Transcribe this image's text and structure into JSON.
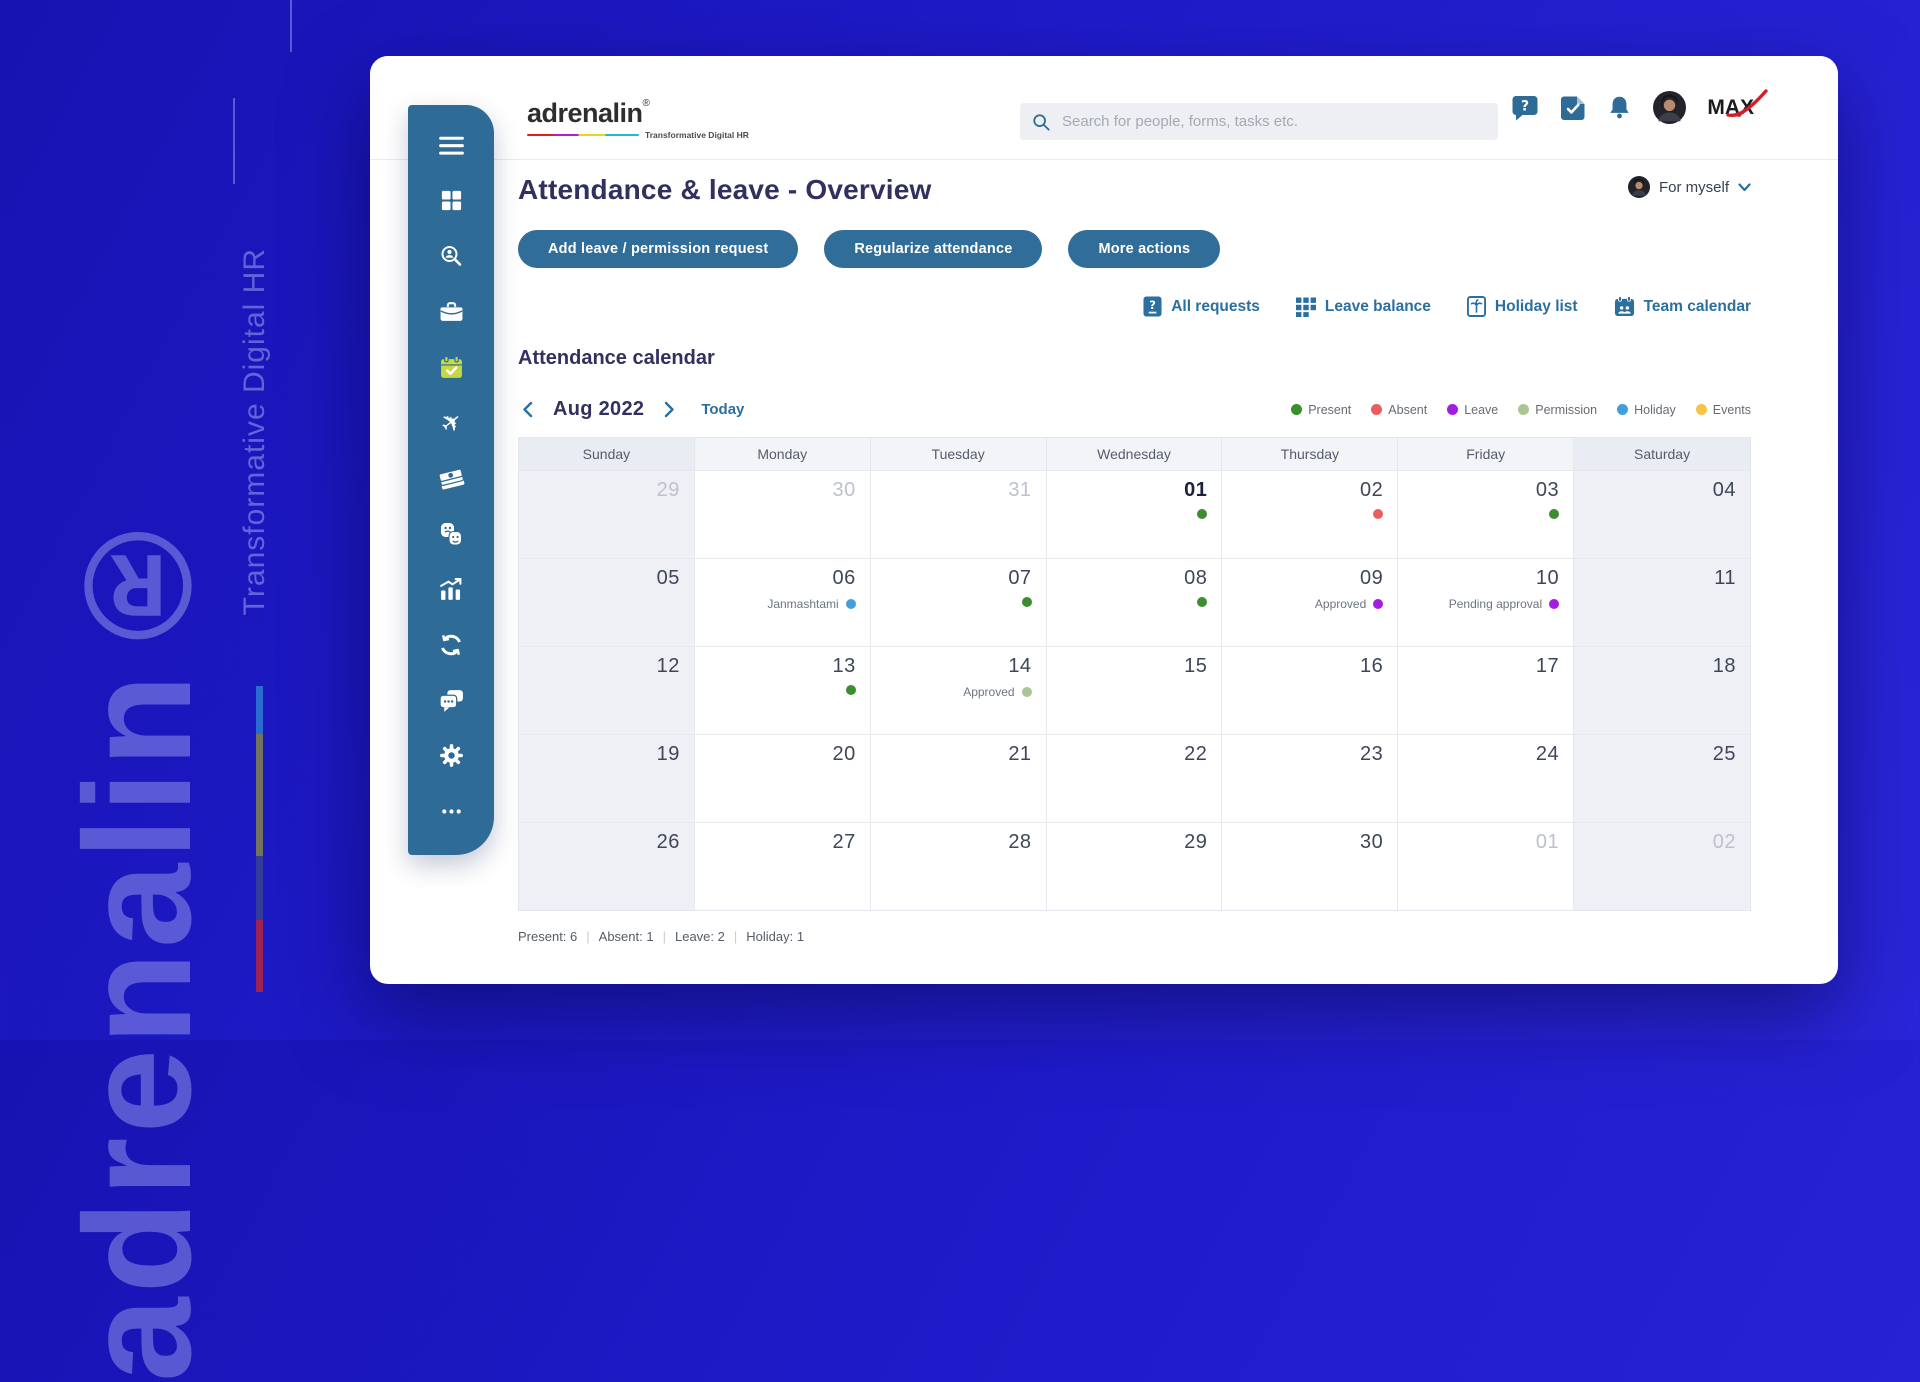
{
  "background": {
    "watermark": "adrenalin®",
    "tagline": "Transformative Digital HR"
  },
  "header": {
    "logo_text": "adrenalin",
    "logo_reg": "®",
    "logo_tagline": "Transformative Digital HR",
    "search_placeholder": "Search for people, forms, tasks etc.",
    "icons": [
      {
        "icon": "help"
      },
      {
        "icon": "tasks"
      },
      {
        "icon": "notifications"
      },
      {
        "icon": "avatar"
      }
    ],
    "brand_badge": "MAX"
  },
  "context_switcher": {
    "label": "For myself"
  },
  "page_title": "Attendance & leave - Overview",
  "action_buttons": [
    {
      "label": "Add leave / permission request"
    },
    {
      "label": "Regularize attendance"
    },
    {
      "label": "More actions"
    }
  ],
  "quick_links": [
    {
      "icon": "requests",
      "label": "All requests"
    },
    {
      "icon": "grid",
      "label": "Leave balance"
    },
    {
      "icon": "holiday",
      "label": "Holiday list"
    },
    {
      "icon": "team-calendar",
      "label": "Team calendar"
    }
  ],
  "sidebar": {
    "items": [
      {
        "icon": "menu"
      },
      {
        "icon": "dashboard"
      },
      {
        "icon": "people-search"
      },
      {
        "icon": "briefcase"
      },
      {
        "icon": "attendance",
        "active": true
      },
      {
        "icon": "travel"
      },
      {
        "icon": "payroll"
      },
      {
        "icon": "engagement"
      },
      {
        "icon": "analytics"
      },
      {
        "icon": "sync"
      },
      {
        "icon": "chat"
      },
      {
        "icon": "settings"
      },
      {
        "icon": "more"
      }
    ]
  },
  "calendar": {
    "heading": "Attendance calendar",
    "month_label": "Aug 2022",
    "today_label": "Today",
    "legend": [
      {
        "id": "present",
        "label": "Present",
        "color": "#3a8e2e"
      },
      {
        "id": "absent",
        "label": "Absent",
        "color": "#e85d5d"
      },
      {
        "id": "leave",
        "label": "Leave",
        "color": "#a31de0"
      },
      {
        "id": "permission",
        "label": "Permission",
        "color": "#a9c694"
      },
      {
        "id": "holiday",
        "label": "Holiday",
        "color": "#41a0dc"
      },
      {
        "id": "events",
        "label": "Events",
        "color": "#f5c443"
      }
    ],
    "day_headers": [
      "Sunday",
      "Monday",
      "Tuesday",
      "Wednesday",
      "Thursday",
      "Friday",
      "Saturday"
    ],
    "weeks": [
      [
        {
          "day": "29",
          "muted": true
        },
        {
          "day": "30",
          "muted": true
        },
        {
          "day": "31",
          "muted": true
        },
        {
          "day": "01",
          "today": true,
          "dot": "present"
        },
        {
          "day": "02",
          "dot": "absent"
        },
        {
          "day": "03",
          "dot": "present"
        },
        {
          "day": "04"
        }
      ],
      [
        {
          "day": "05"
        },
        {
          "day": "06",
          "label": "Janmashtami",
          "dot": "holiday"
        },
        {
          "day": "07",
          "dot": "present"
        },
        {
          "day": "08",
          "dot": "present"
        },
        {
          "day": "09",
          "label": "Approved",
          "dot": "leave"
        },
        {
          "day": "10",
          "label": "Pending approval",
          "dot": "leave"
        },
        {
          "day": "11"
        }
      ],
      [
        {
          "day": "12"
        },
        {
          "day": "13",
          "dot": "present"
        },
        {
          "day": "14",
          "label": "Approved",
          "dot": "permission"
        },
        {
          "day": "15"
        },
        {
          "day": "16"
        },
        {
          "day": "17"
        },
        {
          "day": "18"
        }
      ],
      [
        {
          "day": "19"
        },
        {
          "day": "20"
        },
        {
          "day": "21"
        },
        {
          "day": "22"
        },
        {
          "day": "23"
        },
        {
          "day": "24"
        },
        {
          "day": "25"
        }
      ],
      [
        {
          "day": "26"
        },
        {
          "day": "27"
        },
        {
          "day": "28"
        },
        {
          "day": "29"
        },
        {
          "day": "30"
        },
        {
          "day": "01",
          "muted": true
        },
        {
          "day": "02",
          "muted": true
        }
      ]
    ],
    "summary": [
      "Present: 6",
      "Absent: 1",
      "Leave: 2",
      "Holiday: 1"
    ]
  },
  "colors": {
    "accent": "#2f6b97",
    "active_icon": "#c6d93f",
    "title": "#32305e",
    "link": "#2b6f9f"
  }
}
